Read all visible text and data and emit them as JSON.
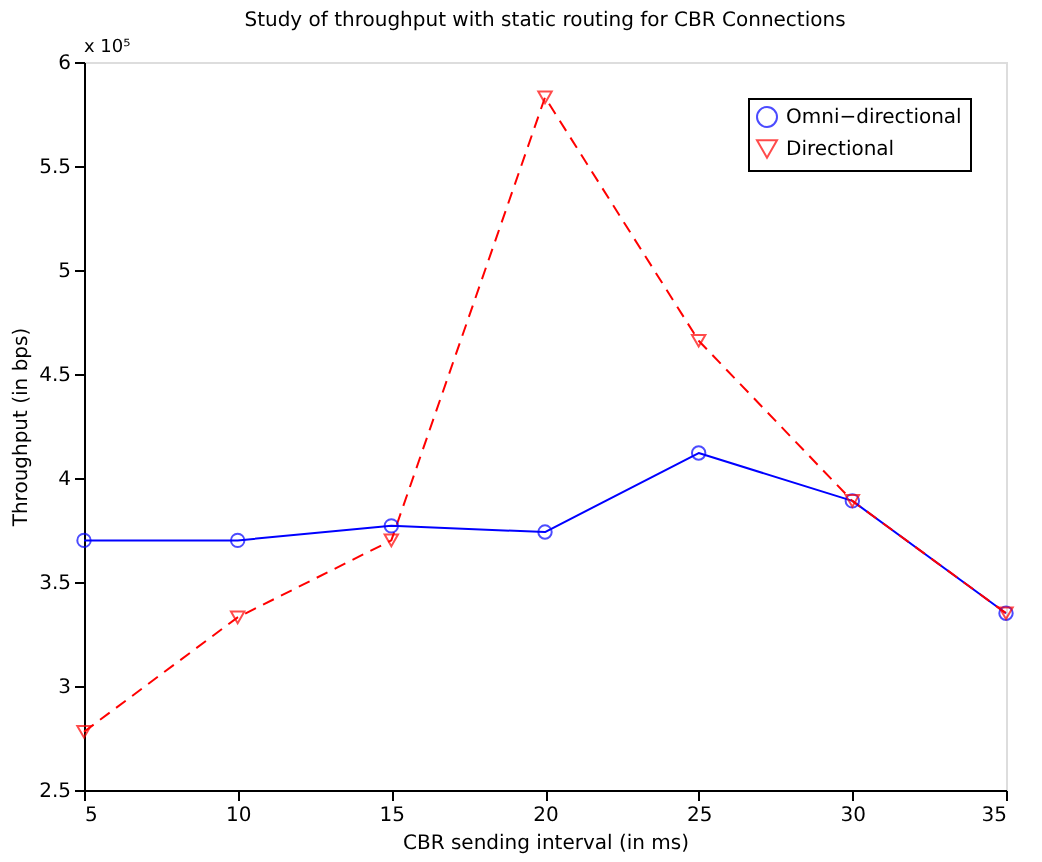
{
  "chart_data": {
    "type": "line",
    "title": "Study of throughput with static routing for CBR Connections",
    "xlabel": "CBR sending interval (in ms)",
    "ylabel": "Throughput (in bps)",
    "x": [
      5,
      10,
      15,
      20,
      25,
      30,
      35
    ],
    "series": [
      {
        "name": "Omni−directional",
        "color": "#0000ff",
        "marker": "circle",
        "line_style": "solid",
        "values": [
          3.7,
          3.7,
          3.77,
          3.74,
          4.12,
          3.89,
          3.35
        ]
      },
      {
        "name": "Directional",
        "color": "#ff0000",
        "marker": "triangle-down",
        "line_style": "dashed",
        "values": [
          2.78,
          3.33,
          3.7,
          5.83,
          4.66,
          3.89,
          3.35
        ]
      }
    ],
    "xlim": [
      5,
      35
    ],
    "xticks": [
      5,
      10,
      15,
      20,
      25,
      30,
      35
    ],
    "ylim": [
      2.5,
      6
    ],
    "yticks": [
      2.5,
      3,
      3.5,
      4,
      4.5,
      5,
      5.5,
      6
    ],
    "annotations": [
      "x 10⁵"
    ],
    "grid": false,
    "legend": "top right"
  }
}
